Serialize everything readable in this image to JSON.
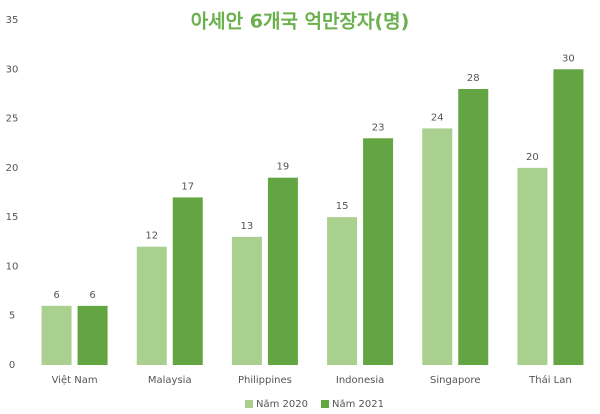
{
  "chart_data": {
    "type": "bar",
    "title": "아세안 6개국 억만장자(명)",
    "categories": [
      "Việt Nam",
      "Malaysia",
      "Philippines",
      "Indonesia",
      "Singapore",
      "Thái Lan"
    ],
    "series": [
      {
        "name": "Năm 2020",
        "color": "#a9d08e",
        "values": [
          6,
          12,
          13,
          15,
          24,
          20
        ]
      },
      {
        "name": "Năm 2021",
        "color": "#62a542",
        "values": [
          6,
          17,
          19,
          23,
          28,
          30
        ]
      }
    ],
    "ylim": [
      0,
      35
    ],
    "yticks": [
      0,
      5,
      10,
      15,
      20,
      25,
      30,
      35
    ],
    "grid": false,
    "legend": "bottom"
  }
}
